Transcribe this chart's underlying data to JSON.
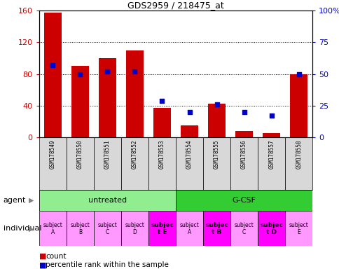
{
  "title": "GDS2959 / 218475_at",
  "samples": [
    "GSM178549",
    "GSM178550",
    "GSM178551",
    "GSM178552",
    "GSM178553",
    "GSM178554",
    "GSM178555",
    "GSM178556",
    "GSM178557",
    "GSM178558"
  ],
  "counts": [
    158,
    90,
    100,
    110,
    37,
    15,
    42,
    8,
    5,
    80
  ],
  "percentile_ranks": [
    57,
    50,
    52,
    52,
    29,
    20,
    26,
    20,
    17,
    50
  ],
  "ylim_left": [
    0,
    160
  ],
  "ylim_right": [
    0,
    100
  ],
  "yticks_left": [
    0,
    40,
    80,
    120,
    160
  ],
  "yticks_right": [
    0,
    25,
    50,
    75,
    100
  ],
  "ytick_labels_left": [
    "0",
    "40",
    "80",
    "120",
    "160"
  ],
  "ytick_labels_right": [
    "0",
    "25",
    "50",
    "75",
    "100%"
  ],
  "agent_untreated_label": "untreated",
  "agent_gcsf_label": "G-CSF",
  "agent_untreated_color": "#90EE90",
  "agent_gcsf_color": "#33CC33",
  "individual_labels": [
    "subject\nA",
    "subject\nB",
    "subject\nC",
    "subject\nD",
    "subjec\nt E",
    "subject\nA",
    "subjec\nt B",
    "subject\nC",
    "subjec\nt D",
    "subject\nE"
  ],
  "individual_colors_light": "#FF99FF",
  "individual_colors_dark": "#FF00FF",
  "individual_bold": [
    false,
    false,
    false,
    false,
    true,
    false,
    true,
    false,
    true,
    false
  ],
  "bar_color": "#CC0000",
  "dot_color": "#0000CC",
  "sample_bg_color": "#D8D8D8",
  "tick_label_color_left": "#CC0000",
  "tick_label_color_right": "#0000CC",
  "legend_count_color": "#CC0000",
  "legend_pct_color": "#0000CC"
}
